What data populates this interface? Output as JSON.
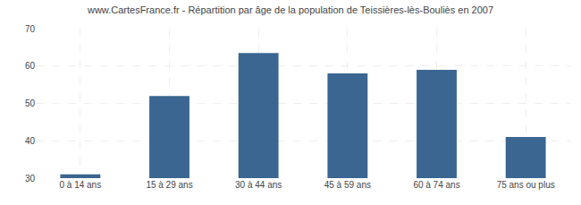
{
  "chart_data": {
    "type": "bar",
    "title": "www.CartesFrance.fr - Répartition par âge de la population de Teissières-lès-Bouliès en 2007",
    "categories": [
      "0 à 14 ans",
      "15 à 29 ans",
      "30 à 44 ans",
      "45 à 59 ans",
      "60 à 74 ans",
      "75 ans ou plus"
    ],
    "values": [
      31,
      52,
      63.5,
      58,
      59,
      41
    ],
    "color": "#3a6691",
    "ylim": [
      30,
      70
    ],
    "yticks": [
      30,
      40,
      50,
      60,
      70
    ],
    "grid": true
  }
}
